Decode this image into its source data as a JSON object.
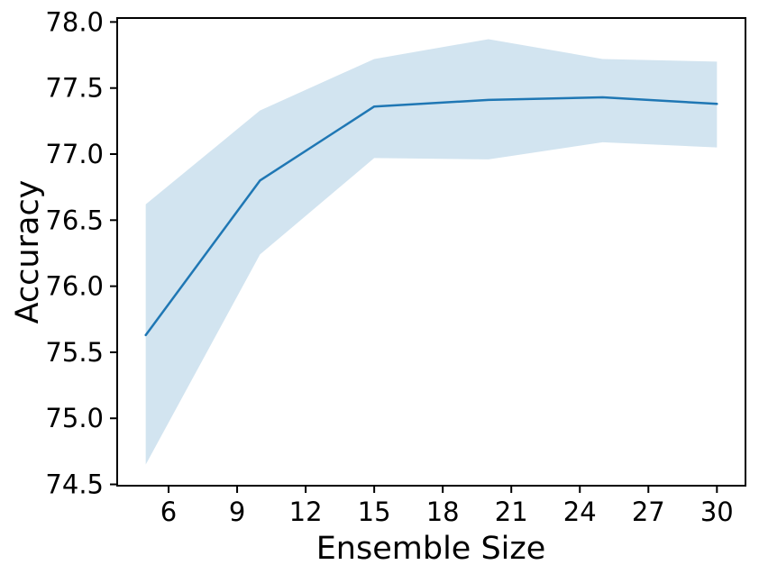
{
  "chart_data": {
    "type": "line",
    "title": "",
    "xlabel": "Ensemble Size",
    "ylabel": "Accuracy",
    "x": [
      5,
      10,
      15,
      20,
      25,
      30
    ],
    "series": [
      {
        "name": "mean-accuracy",
        "role": "line",
        "values": [
          75.63,
          76.8,
          77.36,
          77.41,
          77.43,
          77.38
        ]
      },
      {
        "name": "band-upper",
        "role": "band_upper",
        "values": [
          76.62,
          77.33,
          77.72,
          77.87,
          77.72,
          77.7
        ]
      },
      {
        "name": "band-lower",
        "role": "band_lower",
        "values": [
          74.65,
          76.24,
          76.97,
          76.96,
          77.09,
          77.05
        ]
      }
    ],
    "xticks": {
      "values": [
        6,
        9,
        12,
        15,
        18,
        21,
        24,
        27,
        30
      ],
      "labels": [
        "6",
        "9",
        "12",
        "15",
        "18",
        "21",
        "24",
        "27",
        "30"
      ]
    },
    "yticks": {
      "values": [
        74.5,
        75.0,
        75.5,
        76.0,
        76.5,
        77.0,
        77.5,
        78.0
      ],
      "labels": [
        "74.5",
        "75.0",
        "75.5",
        "76.0",
        "76.5",
        "77.0",
        "77.5",
        "78.0"
      ]
    },
    "xlim": [
      3.75,
      31.25
    ],
    "ylim": [
      74.49,
      78.03
    ],
    "grid": false,
    "legend": false,
    "colors": {
      "line": "#1f77b4",
      "band": "#1f77b4",
      "band_opacity": 0.2,
      "axis": "#000000",
      "text": "#000000",
      "background": "#ffffff"
    }
  }
}
